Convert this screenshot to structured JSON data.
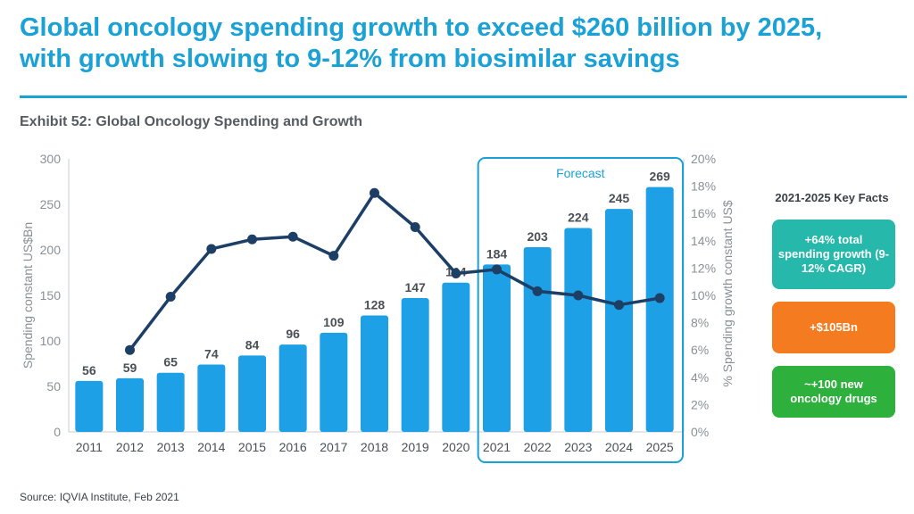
{
  "headline": {
    "line1": "Global oncology spending growth to exceed $260 billion by 2025,",
    "line2": "with growth slowing to 9-12% from biosimilar savings"
  },
  "exhibit_title": "Exhibit 52: Global Oncology Spending and Growth",
  "source": "Source: IQVIA Institute, Feb 2021",
  "colors": {
    "accent": "#1aa1d6",
    "bar": "#1ea0e6",
    "line": "#1d3f66",
    "fact_teal": "#26b8aa",
    "fact_orange": "#f47b20",
    "fact_green": "#2eb03d"
  },
  "key_facts": {
    "title": "2021-2025 Key Facts",
    "items": [
      {
        "text": "+64% total spending growth (9-12% CAGR)"
      },
      {
        "text": "+$105Bn"
      },
      {
        "text": "~+100 new oncology drugs"
      }
    ]
  },
  "chart_data": {
    "type": "bar",
    "categories": [
      "2011",
      "2012",
      "2013",
      "2014",
      "2015",
      "2016",
      "2017",
      "2018",
      "2019",
      "2020",
      "2021",
      "2022",
      "2023",
      "2024",
      "2025"
    ],
    "series": [
      {
        "name": "Spending constant US$Bn",
        "type": "bar",
        "axis": "left",
        "values": [
          56,
          59,
          65,
          74,
          84,
          96,
          109,
          128,
          147,
          164,
          184,
          203,
          224,
          245,
          269
        ]
      },
      {
        "name": "% Spending growth constant US$",
        "type": "line",
        "axis": "right",
        "values": [
          null,
          6.0,
          9.9,
          13.4,
          14.1,
          14.3,
          12.9,
          17.5,
          15.0,
          11.6,
          11.9,
          10.3,
          10.0,
          9.3,
          9.8
        ]
      }
    ],
    "ylabel": "Spending constant US$Bn",
    "ylim": [
      0,
      300
    ],
    "yticks": [
      0,
      50,
      100,
      150,
      200,
      250,
      300
    ],
    "y2label": "% Spending growth constant US$",
    "y2lim": [
      0,
      20
    ],
    "y2ticks": [
      "0%",
      "2%",
      "4%",
      "6%",
      "8%",
      "10%",
      "12%",
      "14%",
      "16%",
      "18%",
      "20%"
    ],
    "forecast_label": "Forecast",
    "forecast_start": "2021",
    "forecast_end": "2025"
  }
}
